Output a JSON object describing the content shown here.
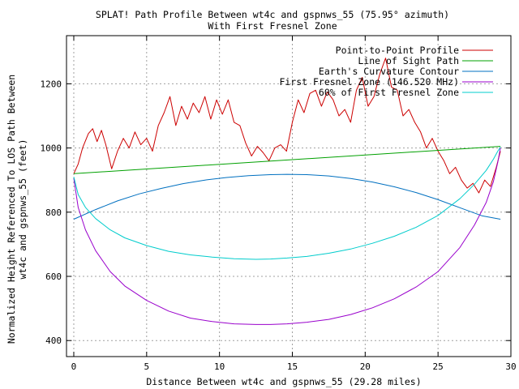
{
  "chart_data": {
    "type": "line",
    "title": "SPLAT! Path Profile Between wt4c and gspnws_55 (75.95° azimuth)",
    "subtitle": "With First Fresnel Zone",
    "xlabel": "Distance Between wt4c and gspnws_55 (29.28 miles)",
    "ylabel_line1": "Normalized Height Referenced To LOS Path Between",
    "ylabel_line2": "wt4c and gspnws_55 (feet)",
    "xlim": [
      -0.5,
      30
    ],
    "ylim": [
      350,
      1350
    ],
    "xticks": [
      0,
      5,
      10,
      15,
      20,
      25,
      30
    ],
    "yticks": [
      400,
      600,
      800,
      1000,
      1200
    ],
    "grid": true,
    "legend_position": "top-right",
    "series": [
      {
        "name": "Point-to-Point Profile",
        "color": "#cc0000",
        "x": [
          0,
          0.3,
          0.6,
          1.0,
          1.3,
          1.6,
          1.9,
          2.2,
          2.6,
          3.0,
          3.4,
          3.8,
          4.2,
          4.6,
          5.0,
          5.4,
          5.8,
          6.2,
          6.6,
          7.0,
          7.4,
          7.8,
          8.2,
          8.6,
          9.0,
          9.4,
          9.8,
          10.2,
          10.6,
          11.0,
          11.4,
          11.8,
          12.2,
          12.6,
          13.0,
          13.4,
          13.8,
          14.2,
          14.6,
          15.0,
          15.4,
          15.8,
          16.2,
          16.6,
          17.0,
          17.4,
          17.8,
          18.2,
          18.6,
          19.0,
          19.4,
          19.8,
          20.2,
          20.6,
          21.0,
          21.4,
          21.8,
          22.2,
          22.6,
          23.0,
          23.4,
          23.8,
          24.2,
          24.6,
          25.0,
          25.4,
          25.8,
          26.2,
          26.6,
          27.0,
          27.4,
          27.8,
          28.2,
          28.6,
          29.0,
          29.28
        ],
        "y": [
          920,
          950,
          1000,
          1045,
          1060,
          1020,
          1055,
          1010,
          935,
          990,
          1030,
          1000,
          1050,
          1010,
          1030,
          990,
          1070,
          1110,
          1160,
          1070,
          1130,
          1090,
          1140,
          1110,
          1160,
          1090,
          1150,
          1105,
          1150,
          1080,
          1070,
          1015,
          975,
          1005,
          985,
          960,
          1000,
          1010,
          990,
          1080,
          1150,
          1110,
          1170,
          1180,
          1130,
          1175,
          1150,
          1100,
          1120,
          1080,
          1180,
          1220,
          1130,
          1160,
          1230,
          1280,
          1190,
          1180,
          1100,
          1120,
          1080,
          1050,
          1000,
          1030,
          990,
          960,
          920,
          940,
          900,
          875,
          890,
          860,
          900,
          880,
          940,
          990
        ]
      },
      {
        "name": "Line of Sight Path",
        "color": "#00a000",
        "x": [
          0,
          29.28
        ],
        "y": [
          920,
          1005
        ]
      },
      {
        "name": "Earth's Curvature Contour",
        "color": "#0070c0",
        "x": [
          0,
          1.5,
          3,
          4.5,
          6,
          7.5,
          9,
          10.5,
          12,
          13.5,
          14.64,
          16,
          17.5,
          19,
          20.5,
          22,
          23.5,
          25,
          26.5,
          28,
          29.28
        ],
        "y": [
          778,
          808,
          835,
          857,
          874,
          889,
          900,
          908,
          914,
          917,
          918,
          917,
          913,
          905,
          894,
          879,
          861,
          839,
          814,
          789,
          778
        ]
      },
      {
        "name": "First Fresnel Zone (146.520 MHz)",
        "color": "#9900cc",
        "x": [
          0,
          0.3,
          0.8,
          1.5,
          2.5,
          3.5,
          5,
          6.5,
          8,
          9.5,
          11,
          12.5,
          13.5,
          14.64,
          16,
          17.5,
          19,
          20.5,
          22,
          23.5,
          25,
          26.5,
          27.5,
          28.3,
          28.8,
          29.1,
          29.28
        ],
        "y": [
          905,
          815,
          745,
          680,
          615,
          570,
          525,
          492,
          470,
          459,
          452,
          450,
          450,
          452,
          457,
          466,
          481,
          502,
          530,
          567,
          615,
          690,
          760,
          830,
          895,
          955,
          1000
        ]
      },
      {
        "name": "60% of First Fresnel Zone",
        "color": "#00cccc",
        "x": [
          0,
          0.3,
          0.8,
          1.5,
          2.5,
          3.5,
          5,
          6.5,
          8,
          9.5,
          11,
          12.5,
          13.5,
          14.64,
          16,
          17.5,
          19,
          20.5,
          22,
          23.5,
          25,
          26.5,
          27.5,
          28.3,
          28.8,
          29.1,
          29.28
        ],
        "y": [
          910,
          855,
          815,
          780,
          745,
          720,
          696,
          678,
          667,
          660,
          655,
          653,
          654,
          657,
          662,
          672,
          685,
          703,
          725,
          753,
          790,
          842,
          887,
          930,
          965,
          990,
          1003
        ]
      }
    ]
  }
}
